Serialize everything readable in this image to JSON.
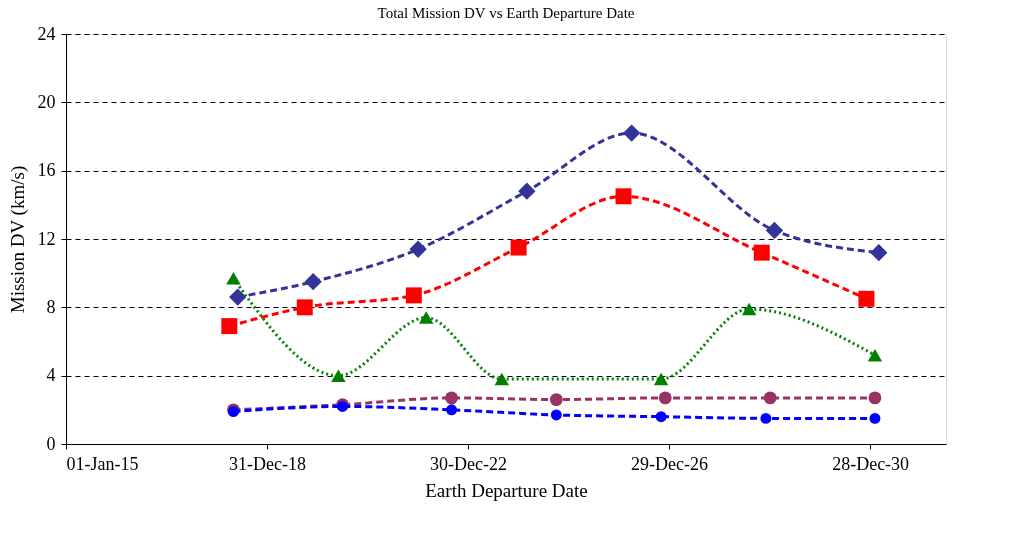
{
  "chart_data": {
    "type": "line",
    "title": "Total Mission DV vs Earth Departure Date",
    "xlabel": "Earth Departure Date",
    "ylabel": "Mission DV  (km/s)",
    "xlim": [
      "2015-01-01",
      "2032-07-01"
    ],
    "xticks": [
      {
        "value": "2015-01-01",
        "label": "01-Jan-15"
      },
      {
        "value": "2018-12-31",
        "label": "31-Dec-18"
      },
      {
        "value": "2022-12-30",
        "label": "30-Dec-22"
      },
      {
        "value": "2026-12-29",
        "label": "29-Dec-26"
      },
      {
        "value": "2030-12-28",
        "label": "28-Dec-30"
      }
    ],
    "ylim": [
      0,
      24
    ],
    "yticks": [
      0,
      4,
      8,
      12,
      16,
      20,
      24
    ],
    "grid": "y",
    "series": [
      {
        "color": "#333399",
        "marker": "diamond",
        "line_style": "dashed",
        "x": [
          "2018-06",
          "2019-12",
          "2022-01",
          "2024-03",
          "2026-04",
          "2029-02",
          "2031-03"
        ],
        "values": [
          8.6,
          9.5,
          11.4,
          14.8,
          18.2,
          12.5,
          11.2
        ]
      },
      {
        "color": "#ff0000",
        "marker": "square",
        "line_style": "dashed",
        "x": [
          "2018-04",
          "2019-10",
          "2021-12",
          "2024-01",
          "2026-02",
          "2028-11",
          "2030-12"
        ],
        "values": [
          6.9,
          8.0,
          8.7,
          11.5,
          14.5,
          11.2,
          8.5
        ]
      },
      {
        "color": "#008000",
        "marker": "triangle",
        "line_style": "dotted",
        "x": [
          "2018-05",
          "2020-06",
          "2022-03",
          "2023-09",
          "2026-11",
          "2028-08",
          "2031-02"
        ],
        "values": [
          9.7,
          4.0,
          7.4,
          3.8,
          3.8,
          7.9,
          5.2
        ]
      },
      {
        "color": "#993366",
        "marker": "circle",
        "line_style": "dashed",
        "x": [
          "2018-05",
          "2020-07",
          "2022-09",
          "2024-10",
          "2026-12",
          "2029-01",
          "2031-02"
        ],
        "values": [
          2.0,
          2.3,
          2.7,
          2.6,
          2.7,
          2.7,
          2.7
        ]
      },
      {
        "color": "#0000ff",
        "marker": "circle",
        "line_style": "dashed",
        "x": [
          "2018-05",
          "2020-07",
          "2022-09",
          "2024-10",
          "2026-11",
          "2028-12",
          "2031-02"
        ],
        "values": [
          1.9,
          2.2,
          2.0,
          1.7,
          1.6,
          1.5,
          1.5
        ]
      }
    ]
  }
}
